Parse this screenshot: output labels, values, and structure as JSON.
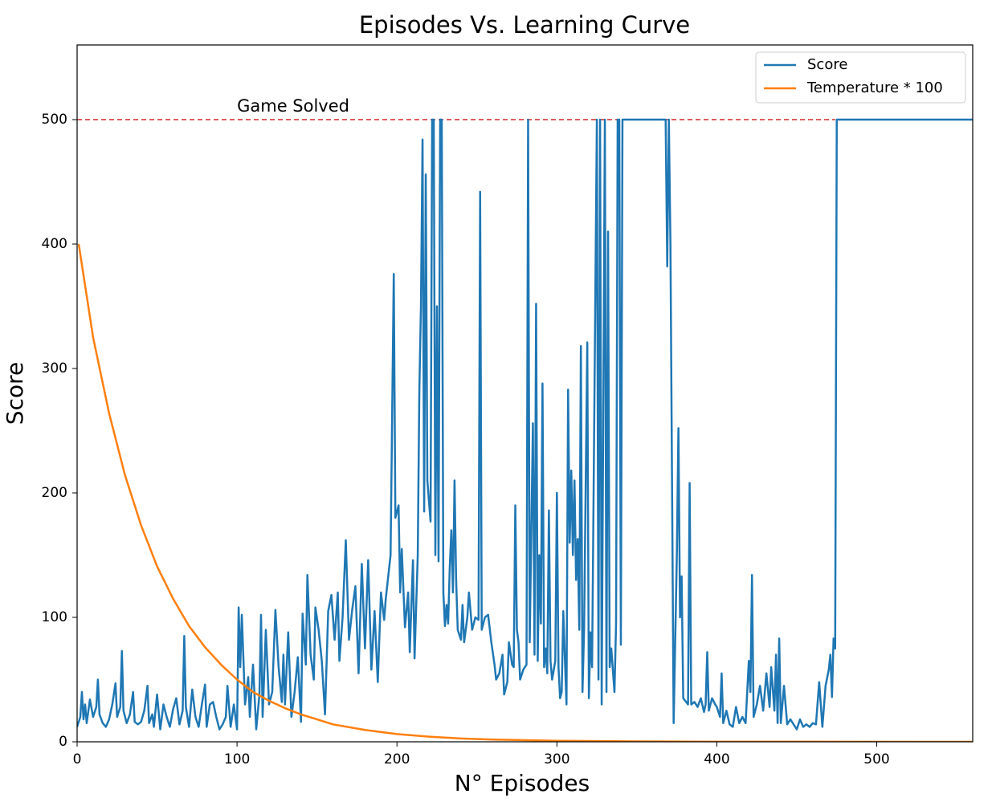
{
  "chart_data": {
    "type": "line",
    "title": "Episodes Vs. Learning Curve",
    "x_label": "N° Episodes",
    "y_label": "Score",
    "xlim": [
      0,
      560
    ],
    "ylim": [
      0,
      560
    ],
    "xticks": [
      0,
      100,
      200,
      300,
      400,
      500
    ],
    "yticks": [
      0,
      100,
      200,
      300,
      400,
      500
    ],
    "legend": "upper right",
    "hline": {
      "y": 500,
      "xrange": [
        0,
        474
      ],
      "label": "Game Solved",
      "label_x": 100,
      "color": "#d62728"
    },
    "series": [
      {
        "name": "Score",
        "color": "#1f77b4",
        "x": [
          0,
          2,
          3,
          4,
          5,
          6,
          8,
          10,
          12,
          13,
          14,
          16,
          18,
          20,
          22,
          24,
          25,
          27,
          28,
          29,
          31,
          33,
          35,
          36,
          38,
          40,
          42,
          44,
          45,
          47,
          48,
          50,
          52,
          54,
          56,
          58,
          60,
          62,
          64,
          66,
          67,
          68,
          70,
          72,
          74,
          76,
          78,
          80,
          81,
          83,
          85,
          87,
          89,
          91,
          93,
          94,
          96,
          98,
          100,
          101,
          102,
          103,
          105,
          107,
          108,
          110,
          112,
          114,
          115,
          116,
          118,
          120,
          122,
          124,
          126,
          128,
          129,
          130,
          132,
          134,
          136,
          138,
          140,
          141,
          143,
          144,
          146,
          148,
          149,
          151,
          153,
          155,
          157,
          159,
          161,
          163,
          164,
          166,
          168,
          170,
          172,
          174,
          176,
          178,
          180,
          182,
          184,
          186,
          188,
          190,
          192,
          193,
          196,
          198,
          199,
          201,
          202,
          203,
          205,
          207,
          208,
          210,
          211,
          213,
          214,
          215,
          216,
          217,
          218,
          219,
          221,
          222,
          223,
          224,
          225,
          226,
          227,
          228,
          229,
          230,
          231,
          232,
          233,
          234,
          235,
          236,
          237,
          238,
          240,
          241,
          242,
          244,
          245,
          247,
          249,
          251,
          252,
          253,
          255,
          257,
          259,
          261,
          262,
          264,
          266,
          267,
          269,
          270,
          272,
          273,
          274,
          275,
          276,
          277,
          279,
          281,
          282,
          283,
          285,
          286,
          287,
          288,
          289,
          290,
          291,
          292,
          293,
          294,
          295,
          296,
          297,
          299,
          300,
          301,
          302,
          303,
          304,
          305,
          306,
          307,
          308,
          309,
          310,
          311,
          312,
          313,
          314,
          315,
          316,
          317,
          319,
          320,
          321,
          322,
          325,
          326,
          327,
          328,
          330,
          331,
          332,
          333,
          334,
          336,
          337,
          338,
          339,
          340,
          341,
          342,
          344,
          368,
          369,
          370,
          371,
          373,
          375,
          376,
          377,
          378,
          379,
          382,
          383,
          384,
          386,
          388,
          390,
          392,
          393,
          394,
          395,
          397,
          399,
          400,
          402,
          403,
          404,
          406,
          408,
          410,
          412,
          414,
          416,
          418,
          420,
          421,
          422,
          423,
          425,
          427,
          429,
          431,
          433,
          434,
          436,
          437,
          438,
          439,
          440,
          442,
          444,
          446,
          448,
          450,
          452,
          454,
          456,
          458,
          460,
          462,
          464,
          466,
          468,
          470,
          471,
          472,
          473,
          474,
          475,
          560
        ],
        "values": [
          12,
          20,
          40,
          18,
          30,
          15,
          34,
          20,
          28,
          50,
          22,
          15,
          12,
          18,
          30,
          47,
          20,
          28,
          73,
          25,
          15,
          22,
          40,
          16,
          14,
          16,
          25,
          45,
          15,
          22,
          12,
          38,
          10,
          30,
          20,
          12,
          26,
          35,
          14,
          25,
          85,
          28,
          12,
          42,
          20,
          12,
          30,
          46,
          12,
          30,
          32,
          20,
          10,
          14,
          20,
          45,
          12,
          30,
          10,
          108,
          60,
          102,
          30,
          52,
          20,
          62,
          10,
          38,
          102,
          20,
          90,
          30,
          40,
          106,
          60,
          32,
          70,
          30,
          88,
          20,
          40,
          68,
          16,
          103,
          62,
          134,
          70,
          50,
          108,
          90,
          65,
          22,
          105,
          118,
          82,
          120,
          65,
          100,
          162,
          82,
          106,
          125,
          55,
          143,
          75,
          146,
          58,
          105,
          48,
          120,
          98,
          115,
          150,
          376,
          180,
          190,
          120,
          155,
          92,
          120,
          72,
          146,
          67,
          150,
          283,
          350,
          484,
          185,
          456,
          210,
          177,
          500,
          500,
          150,
          350,
          145,
          500,
          500,
          120,
          93,
          110,
          95,
          140,
          170,
          120,
          210,
          130,
          90,
          82,
          110,
          80,
          100,
          120,
          90,
          100,
          98,
          442,
          90,
          100,
          102,
          80,
          62,
          50,
          55,
          70,
          38,
          48,
          80,
          62,
          60,
          190,
          90,
          80,
          50,
          58,
          62,
          500,
          80,
          256,
          70,
          352,
          65,
          150,
          95,
          288,
          60,
          75,
          55,
          186,
          65,
          50,
          65,
          200,
          60,
          35,
          40,
          105,
          67,
          30,
          283,
          160,
          218,
          150,
          210,
          130,
          163,
          90,
          318,
          40,
          90,
          321,
          35,
          88,
          60,
          500,
          50,
          500,
          30,
          500,
          40,
          410,
          60,
          75,
          40,
          95,
          500,
          500,
          78,
          500,
          500,
          500,
          500,
          382,
          500,
          400,
          15,
          150,
          252,
          100,
          133,
          35,
          30,
          208,
          30,
          32,
          28,
          35,
          24,
          30,
          72,
          25,
          35,
          30,
          28,
          20,
          55,
          15,
          25,
          14,
          12,
          28,
          15,
          20,
          15,
          65,
          40,
          134,
          20,
          30,
          45,
          25,
          55,
          28,
          60,
          25,
          70,
          15,
          83,
          15,
          45,
          14,
          18,
          14,
          10,
          18,
          12,
          14,
          12,
          15,
          14,
          48,
          12,
          45,
          58,
          70,
          36,
          83,
          75,
          500,
          500
        ]
      },
      {
        "name": "Temperature * 100",
        "color": "#ff7f0e",
        "x": [
          1,
          10,
          20,
          30,
          40,
          50,
          60,
          70,
          80,
          90,
          100,
          110,
          120,
          130,
          140,
          150,
          160,
          180,
          200,
          220,
          240,
          260,
          300,
          350,
          400,
          560
        ],
        "values": [
          400,
          325,
          264,
          214,
          174,
          141,
          115,
          93,
          76,
          62,
          50,
          40,
          33,
          27,
          22,
          18,
          14,
          9.5,
          6.2,
          4.1,
          2.7,
          1.8,
          0.8,
          0.3,
          0.1,
          0
        ]
      }
    ]
  }
}
